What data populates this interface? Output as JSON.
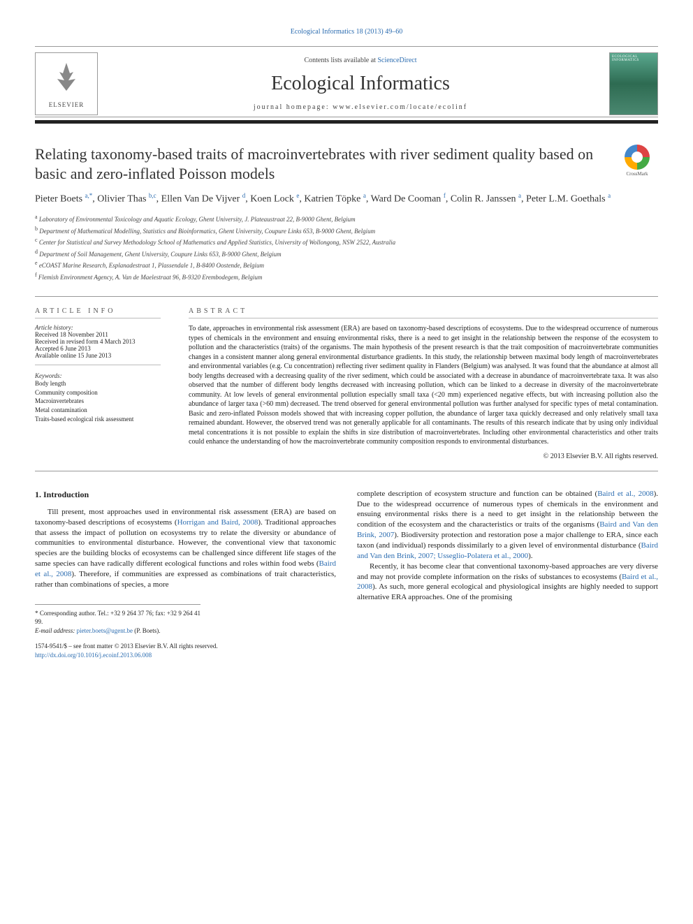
{
  "citation": {
    "journal": "Ecological Informatics",
    "volume_pages": "18 (2013) 49–60"
  },
  "header": {
    "contents_prefix": "Contents lists available at ",
    "contents_link": "ScienceDirect",
    "journal_name": "Ecological Informatics",
    "homepage_label": "journal homepage: ",
    "homepage_url": "www.elsevier.com/locate/ecolinf",
    "publisher": "ELSEVIER",
    "cover_label": "ECOLOGICAL INFORMATICS"
  },
  "article": {
    "title": "Relating taxonomy-based traits of macroinvertebrates with river sediment quality based on basic and zero-inflated Poisson models",
    "crossmark": "CrossMark",
    "authors_html": "Pieter Boets <sup>a,*</sup>, Olivier Thas <sup>b,c</sup>, Ellen Van De Vijver <sup>d</sup>, Koen Lock <sup>e</sup>, Katrien Töpke <sup>a</sup>, Ward De Cooman <sup>f</sup>, Colin R. Janssen <sup>a</sup>, Peter L.M. Goethals <sup>a</sup>",
    "affiliations": [
      {
        "sup": "a",
        "text": "Laboratory of Environmental Toxicology and Aquatic Ecology, Ghent University, J. Plateaustraat 22, B-9000 Ghent, Belgium"
      },
      {
        "sup": "b",
        "text": "Department of Mathematical Modelling, Statistics and Bioinformatics, Ghent University, Coupure Links 653, B-9000 Ghent, Belgium"
      },
      {
        "sup": "c",
        "text": "Center for Statistical and Survey Methodology School of Mathematics and Applied Statistics, University of Wollongong, NSW 2522, Australia"
      },
      {
        "sup": "d",
        "text": "Department of Soil Management, Ghent University, Coupure Links 653, B-9000 Ghent, Belgium"
      },
      {
        "sup": "e",
        "text": "eCOAST Marine Research, Esplanadestraat 1, Plassendale 1, B-8400 Oostende, Belgium"
      },
      {
        "sup": "f",
        "text": "Flemish Environment Agency, A. Van de Maelestraat 96, B-9320 Erembodegem, Belgium"
      }
    ]
  },
  "info": {
    "heading": "ARTICLE INFO",
    "history_label": "Article history:",
    "history": [
      "Received 18 November 2011",
      "Received in revised form 4 March 2013",
      "Accepted 6 June 2013",
      "Available online 15 June 2013"
    ],
    "keywords_label": "Keywords:",
    "keywords": [
      "Body length",
      "Community composition",
      "Macroinvertebrates",
      "Metal contamination",
      "Traits-based ecological risk assessment"
    ]
  },
  "abstract": {
    "heading": "ABSTRACT",
    "text": "To date, approaches in environmental risk assessment (ERA) are based on taxonomy-based descriptions of ecosystems. Due to the widespread occurrence of numerous types of chemicals in the environment and ensuing environmental risks, there is a need to get insight in the relationship between the response of the ecosystem to pollution and the characteristics (traits) of the organisms. The main hypothesis of the present research is that the trait composition of macroinvertebrate communities changes in a consistent manner along general environmental disturbance gradients. In this study, the relationship between maximal body length of macroinvertebrates and environmental variables (e.g. Cu concentration) reflecting river sediment quality in Flanders (Belgium) was analysed. It was found that the abundance at almost all body lengths decreased with a decreasing quality of the river sediment, which could be associated with a decrease in abundance of macroinvertebrate taxa. It was also observed that the number of different body lengths decreased with increasing pollution, which can be linked to a decrease in diversity of the macroinvertebrate community. At low levels of general environmental pollution especially small taxa (<20 mm) experienced negative effects, but with increasing pollution also the abundance of larger taxa (>60 mm) decreased. The trend observed for general environmental pollution was further analysed for specific types of metal contamination. Basic and zero-inflated Poisson models showed that with increasing copper pollution, the abundance of larger taxa quickly decreased and only relatively small taxa remained abundant. However, the observed trend was not generally applicable for all contaminants. The results of this research indicate that by using only individual metal concentrations it is not possible to explain the shifts in size distribution of macroinvertebrates. Including other environmental characteristics and other traits could enhance the understanding of how the macroinvertebrate community composition responds to environmental disturbances.",
    "copyright": "© 2013 Elsevier B.V. All rights reserved."
  },
  "body": {
    "section_heading": "1. Introduction",
    "col1": {
      "p1_pre": "Till present, most approaches used in environmental risk assessment (ERA) are based on taxonomy-based descriptions of ecosystems (",
      "p1_ref1": "Horrigan and Baird, 2008",
      "p1_mid1": "). Traditional approaches that assess the impact of pollution on ecosystems try to relate the diversity or abundance of communities to environmental disturbance. However, the conventional view that taxonomic species are the building blocks of ecosystems can be challenged since different life stages of the same species can have radically different ecological functions and roles within food webs (",
      "p1_ref2": "Baird et al., 2008",
      "p1_post": "). Therefore, if communities are expressed as combinations of trait characteristics, rather than combinations of species, a more"
    },
    "col2": {
      "p1_pre": "complete description of ecosystem structure and function can be obtained (",
      "p1_ref1": "Baird et al., 2008",
      "p1_mid1": "). Due to the widespread occurrence of numerous types of chemicals in the environment and ensuing environmental risks there is a need to get insight in the relationship between the condition of the ecosystem and the characteristics or traits of the organisms (",
      "p1_ref2": "Baird and Van den Brink, 2007",
      "p1_mid2": "). Biodiversity protection and restoration pose a major challenge to ERA, since each taxon (and individual) responds dissimilarly to a given level of environmental disturbance (",
      "p1_ref3": "Baird and Van den Brink, 2007; Usseglio-Polatera et al., 2000",
      "p1_post": ").",
      "p2_pre": "Recently, it has become clear that conventional taxonomy-based approaches are very diverse and may not provide complete information on the risks of substances to ecosystems (",
      "p2_ref1": "Baird et al., 2008",
      "p2_post": "). As such, more general ecological and physiological insights are highly needed to support alternative ERA approaches. One of the promising"
    }
  },
  "footer": {
    "corr_label": "* Corresponding author. Tel.: +32 9 264 37 76; fax: +32 9 264 41 99.",
    "email_label": "E-mail address: ",
    "email": "pieter.boets@ugent.be",
    "email_name": " (P. Boets).",
    "issn_line": "1574-9541/$ – see front matter © 2013 Elsevier B.V. All rights reserved.",
    "doi": "http://dx.doi.org/10.1016/j.ecoinf.2013.06.008"
  }
}
